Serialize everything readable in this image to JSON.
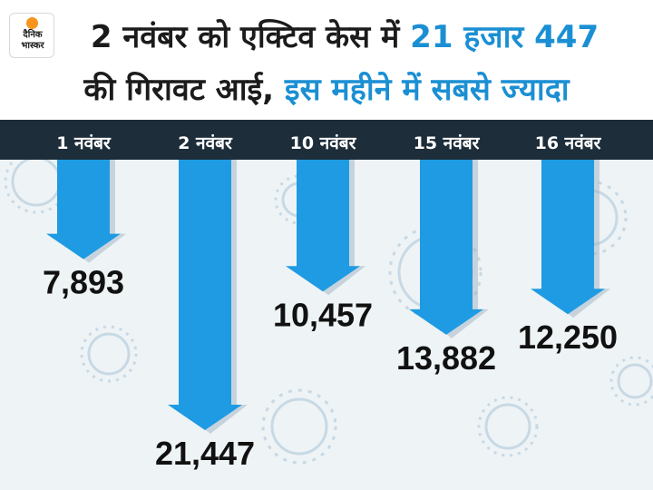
{
  "logo": {
    "line1": "दैनिक",
    "line2": "भास्कर"
  },
  "title": {
    "line1_part1": "2 नवंबर को एक्टिव केस में ",
    "line1_highlight": "21 हजार 447",
    "line2_part1": "की गिरावट आई, ",
    "line2_highlight": "इस महीने में सबसे ज्यादा"
  },
  "colors": {
    "bar": "#1e9be3",
    "bar_dark": "#0d6fb0",
    "band": "#1d2d3a",
    "highlight": "#1b8fd3",
    "value_text": "#111111",
    "tick_text": "#ffffff"
  },
  "chart_data": {
    "type": "bar",
    "orientation": "downward-arrows",
    "categories": [
      "1 नवंबर",
      "2 नवंबर",
      "10 नवंबर",
      "15 नवंबर",
      "16 नवंबर"
    ],
    "values": [
      7893,
      21447,
      10457,
      13882,
      12250
    ],
    "value_labels": [
      "7,893",
      "21,447",
      "10,457",
      "13,882",
      "12,250"
    ],
    "ylim": [
      0,
      22000
    ]
  }
}
